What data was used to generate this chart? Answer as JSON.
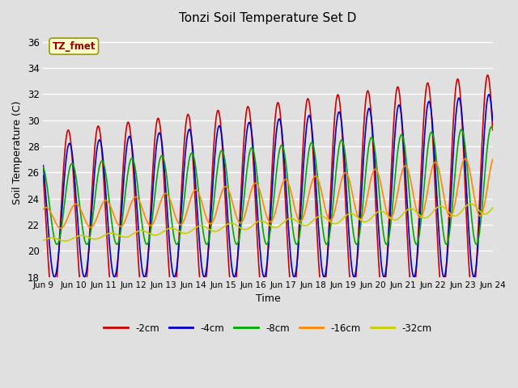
{
  "title": "Tonzi Soil Temperature Set D",
  "xlabel": "Time",
  "ylabel": "Soil Temperature (C)",
  "annotation": "TZ_fmet",
  "ylim": [
    18,
    37
  ],
  "yticks": [
    18,
    20,
    22,
    24,
    26,
    28,
    30,
    32,
    34,
    36
  ],
  "xtick_labels": [
    "Jun 9",
    "Jun 10",
    "Jun 11",
    "Jun 12",
    "Jun 13",
    "Jun 14",
    "Jun 15",
    "Jun 16",
    "Jun 17",
    "Jun 18",
    "Jun 19",
    "Jun 20",
    "Jun 21",
    "Jun 22",
    "Jun 23",
    "Jun 24"
  ],
  "series": [
    {
      "label": "-2cm",
      "color": "#cc0000",
      "lw": 1.2
    },
    {
      "label": "-4cm",
      "color": "#0000cc",
      "lw": 1.2
    },
    {
      "label": "-8cm",
      "color": "#00aa00",
      "lw": 1.2
    },
    {
      "label": "-16cm",
      "color": "#ff8800",
      "lw": 1.2
    },
    {
      "label": "-32cm",
      "color": "#cccc00",
      "lw": 1.2
    }
  ],
  "bg_color": "#e0e0e0",
  "plot_bg_color": "#e0e0e0",
  "grid_color": "#ffffff",
  "annotation_bg": "#ffffcc",
  "annotation_fg": "#990000",
  "annotation_edge": "#999900"
}
